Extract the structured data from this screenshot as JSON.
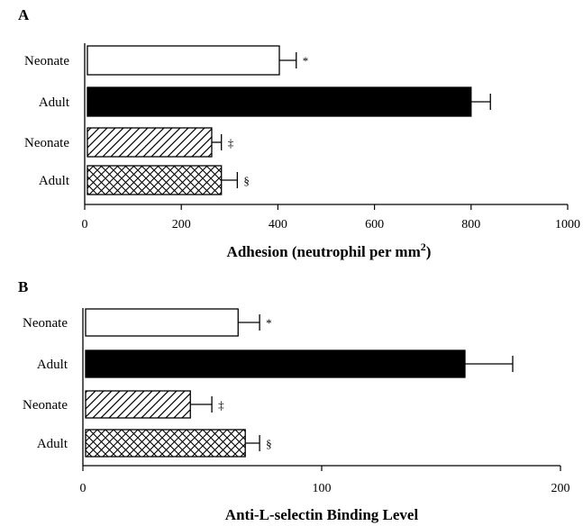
{
  "chart_data": [
    {
      "type": "bar",
      "orientation": "horizontal",
      "panel": "A",
      "categories": [
        "Neonate",
        "Adult",
        "Neonate",
        "Adult"
      ],
      "values": [
        403,
        800,
        263,
        283
      ],
      "errors": [
        35,
        40,
        20,
        33
      ],
      "markers": [
        "*",
        "",
        "‡",
        "§"
      ],
      "fills": [
        "white",
        "black",
        "diagonal",
        "crosshatch"
      ],
      "xlabel": "Adhesion (neutrophil per mm",
      "xlabel_sup": "2",
      "xlabel_close": ")",
      "xlim": [
        0,
        1000
      ],
      "xticks": [
        "0",
        "200",
        "400",
        "600",
        "800",
        "1000"
      ],
      "grid": false
    },
    {
      "type": "bar",
      "orientation": "horizontal",
      "panel": "B",
      "categories": [
        "Neonate",
        "Adult",
        "Neonate",
        "Adult"
      ],
      "values": [
        65,
        160,
        45,
        68
      ],
      "errors": [
        9,
        20,
        9,
        6
      ],
      "markers": [
        "*",
        "",
        "‡",
        "§"
      ],
      "fills": [
        "white",
        "black",
        "diagonal",
        "crosshatch"
      ],
      "xlabel": "Anti-L-selectin Binding Level",
      "xlim": [
        0,
        200
      ],
      "xticks": [
        "0",
        "100",
        "200"
      ],
      "grid": false
    }
  ],
  "colors": {
    "ink": "#000000",
    "background": "#ffffff"
  }
}
